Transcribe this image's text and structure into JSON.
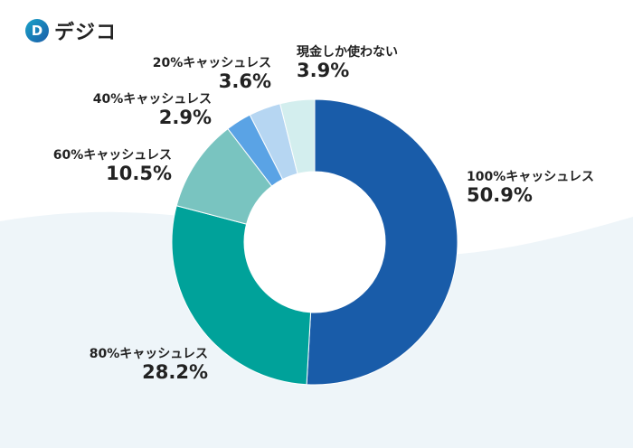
{
  "brand": {
    "logo_text": "デジコ",
    "logo_mark": "D"
  },
  "chart_data": {
    "type": "pie",
    "donut": true,
    "title": "",
    "categories": [
      "100%キャッシュレス",
      "80%キャッシュレス",
      "60%キャッシュレス",
      "40%キャッシュレス",
      "20%キャッシュレス",
      "現金しか使わない"
    ],
    "values": [
      50.9,
      28.2,
      10.5,
      2.9,
      3.6,
      3.9
    ],
    "labels": [
      "50.9%",
      "28.2%",
      "10.5%",
      "2.9%",
      "3.6%",
      "3.9%"
    ],
    "colors": [
      "#195ca9",
      "#00a29a",
      "#79c4c0",
      "#5aa3e5",
      "#b6d6f2",
      "#d3eeee"
    ],
    "start": "top",
    "direction": "clockwise"
  }
}
